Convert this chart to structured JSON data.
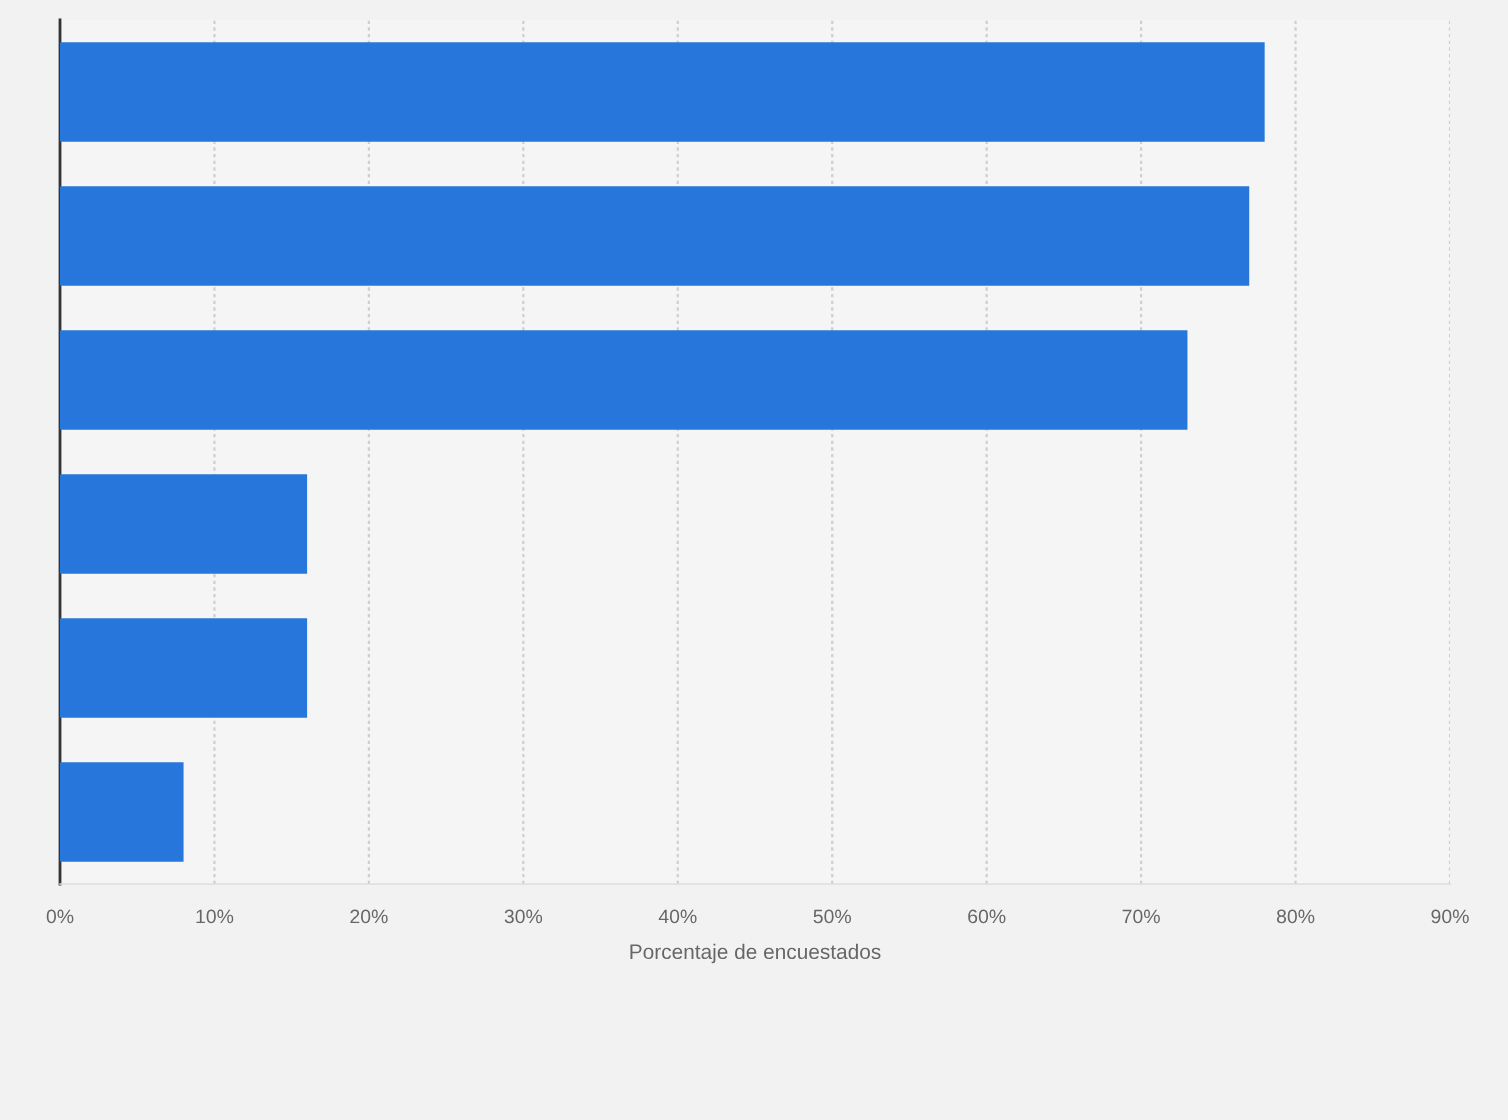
{
  "chart_data": {
    "type": "bar",
    "orientation": "horizontal",
    "categories": [
      null,
      null,
      null,
      null,
      null,
      null
    ],
    "values": [
      78,
      77,
      73,
      16,
      16,
      8
    ],
    "color": "#2776db",
    "xlabel": "Porcentaje de encuestados",
    "xlim": [
      0,
      90
    ],
    "xticks": [
      {
        "value": 0,
        "label": "0%"
      },
      {
        "value": 10,
        "label": "10%"
      },
      {
        "value": 20,
        "label": "20%"
      },
      {
        "value": 30,
        "label": "30%"
      },
      {
        "value": 40,
        "label": "40%"
      },
      {
        "value": 50,
        "label": "50%"
      },
      {
        "value": 60,
        "label": "60%"
      },
      {
        "value": 70,
        "label": "70%"
      },
      {
        "value": 80,
        "label": "80%"
      },
      {
        "value": 90,
        "label": "90%"
      }
    ],
    "grid": "x"
  }
}
